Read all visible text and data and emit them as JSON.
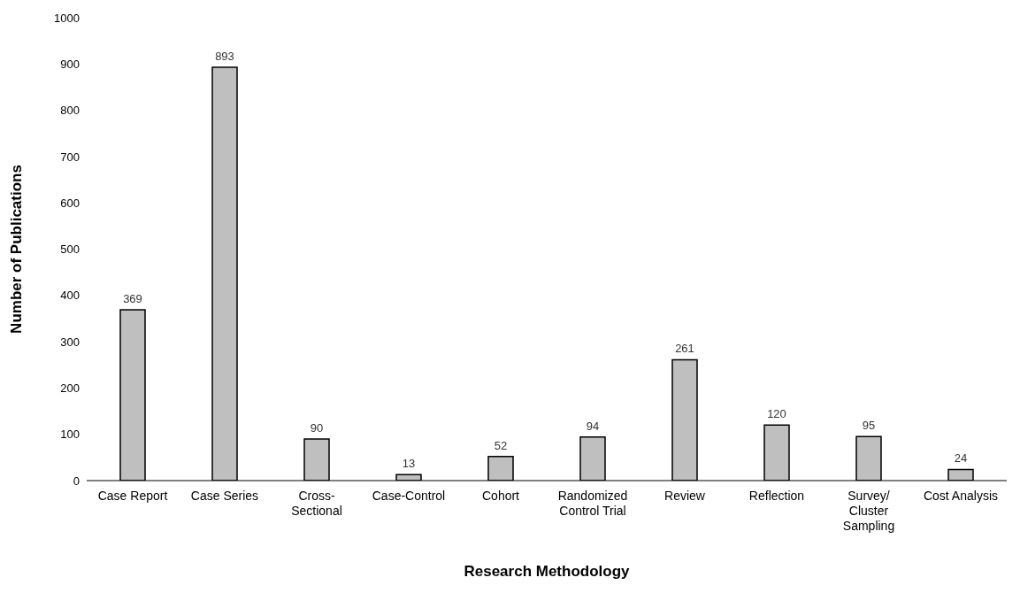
{
  "chart_data": {
    "type": "bar",
    "xlabel": "Research Methodology",
    "ylabel": "Number of Publications",
    "categories": [
      "Case Report",
      "Case Series",
      "Cross-Sectional",
      "Case-Control",
      "Cohort",
      "Randomized Control Trial",
      "Review",
      "Reflection",
      "Survey/ Cluster Sampling",
      "Cost Analysis"
    ],
    "values": [
      369,
      893,
      90,
      13,
      52,
      94,
      261,
      120,
      95,
      24
    ],
    "color": "#bfbfbf",
    "ylim": [
      0,
      1000
    ],
    "yticks": [
      0,
      100,
      200,
      300,
      400,
      500,
      600,
      700,
      800,
      900,
      1000
    ],
    "grid": false,
    "legend": false,
    "data_labels": true
  }
}
